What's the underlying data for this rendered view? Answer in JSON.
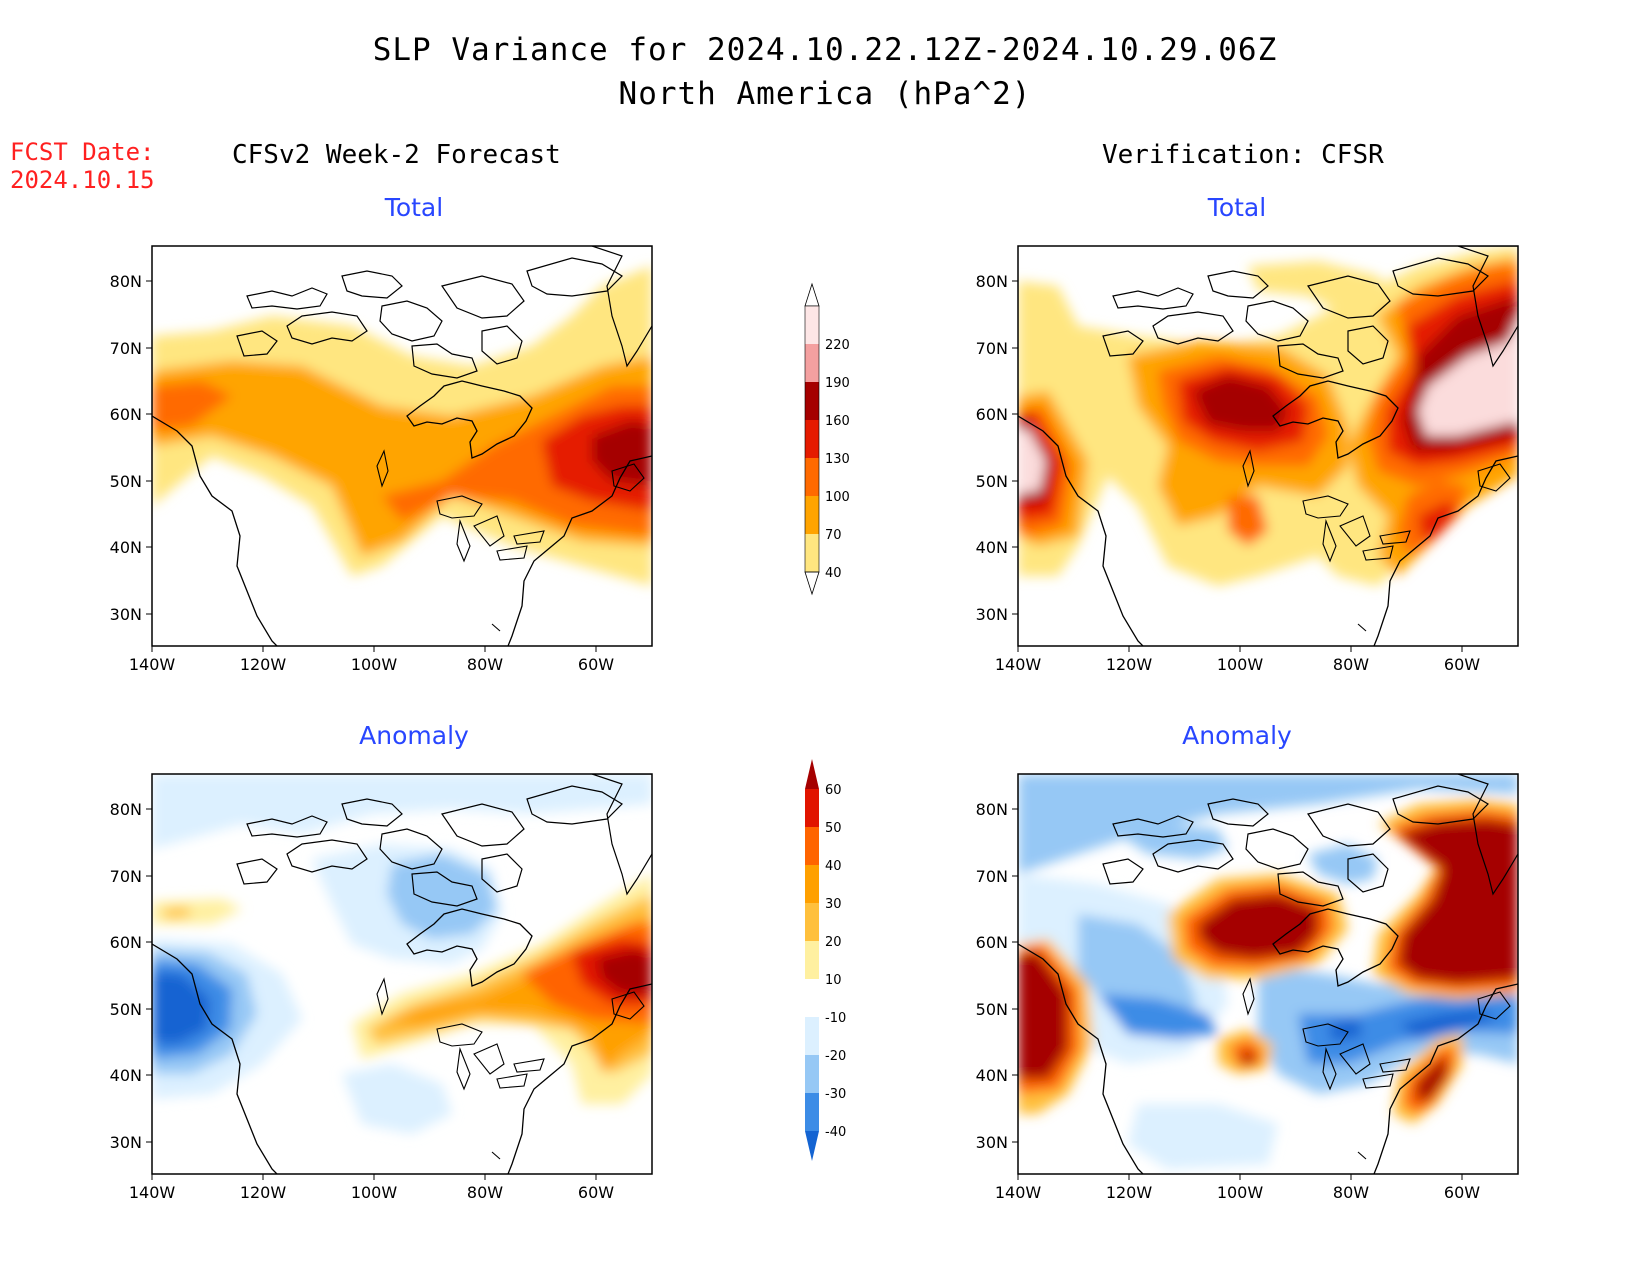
{
  "title": {
    "line1": "SLP Variance for 2024.10.22.12Z-2024.10.29.06Z",
    "line2": "North America (hPa^2)"
  },
  "fcst_date": {
    "label": "FCST Date:",
    "value": "2024.10.15"
  },
  "columns": {
    "left": "CFSv2 Week-2 Forecast",
    "right": "Verification: CFSR"
  },
  "panels": {
    "top_left": "Total",
    "top_right": "Total",
    "bottom_left": "Anomaly",
    "bottom_right": "Anomaly"
  },
  "axes": {
    "lat_labels": [
      "80N",
      "70N",
      "60N",
      "50N",
      "40N",
      "30N"
    ],
    "lon_labels": [
      "140W",
      "120W",
      "100W",
      "80W",
      "60W"
    ]
  },
  "colorbars": {
    "total": {
      "labels": [
        "40",
        "70",
        "100",
        "130",
        "160",
        "190",
        "220"
      ],
      "colors": [
        "#ffe680",
        "#ffa400",
        "#ff6a00",
        "#e51b00",
        "#a50000",
        "#f4a0a0",
        "#fbdcdc"
      ]
    },
    "anomaly": {
      "labels": [
        "-40",
        "-30",
        "-20",
        "-10",
        "10",
        "20",
        "30",
        "40",
        "50",
        "60"
      ],
      "colors": [
        "#1464d2",
        "#3c8ce6",
        "#96c8f5",
        "#dcf0ff",
        "#ffffff",
        "#fff0a0",
        "#ffc03c",
        "#ffa000",
        "#ff6400",
        "#e11400",
        "#a50000"
      ]
    }
  }
}
